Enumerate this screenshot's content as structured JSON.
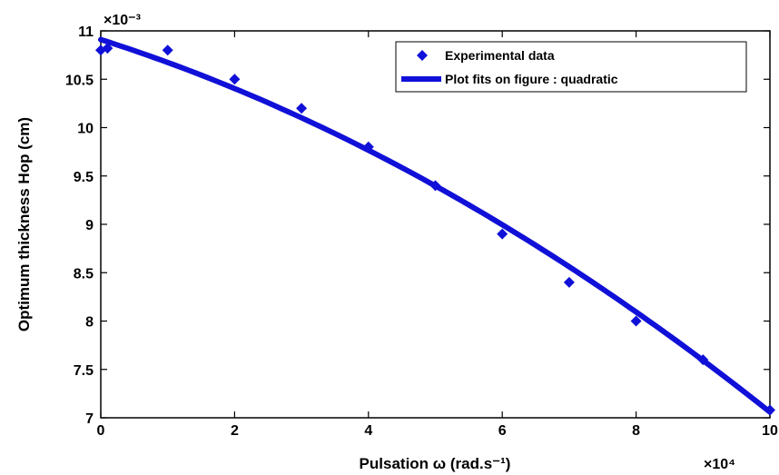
{
  "chart_data": {
    "type": "scatter",
    "xlabel": "Pulsation ω (rad.s⁻¹)",
    "ylabel": "Optimum thickness Hop (cm)",
    "x_multiplier": "×10⁴",
    "y_multiplier": "×10⁻³",
    "xlim": [
      0,
      10
    ],
    "ylim": [
      7,
      11
    ],
    "x_ticks": [
      "0",
      "2",
      "4",
      "6",
      "8",
      "10"
    ],
    "y_ticks": [
      "7",
      "7.5",
      "8",
      "8.5",
      "9",
      "9.5",
      "10",
      "10.5",
      "11"
    ],
    "grid": false,
    "legend_position": "top-right",
    "colors": {
      "series": "#1010d8",
      "axis": "#000000",
      "background": "#ffffff"
    },
    "series": [
      {
        "name": "Experimental data",
        "kind": "markers",
        "marker": "diamond",
        "x": [
          0,
          0.1,
          1,
          2,
          3,
          4,
          5,
          6,
          7,
          8,
          9,
          10
        ],
        "y": [
          10.8,
          10.82,
          10.8,
          10.5,
          10.2,
          9.8,
          9.4,
          8.9,
          8.4,
          8.0,
          7.6,
          7.08
        ]
      },
      {
        "name": "Plot fits on figure : quadratic",
        "kind": "line",
        "fit": "quadratic",
        "coefficients": {
          "a": -0.0165,
          "b": -0.22,
          "c": 10.91
        }
      }
    ]
  }
}
